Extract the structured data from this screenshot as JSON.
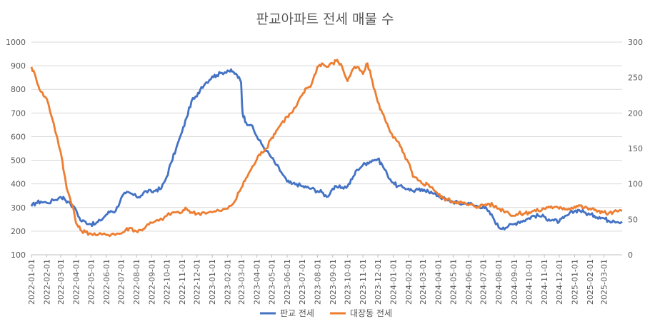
{
  "chart_data": {
    "type": "line",
    "title": "판교아파트 전세 매물 수",
    "x_tick_labels": [
      "2022-01-01",
      "2022-02-01",
      "2022-03-01",
      "2022-04-01",
      "2022-05-01",
      "2022-06-01",
      "2022-07-01",
      "2022-08-01",
      "2022-09-01",
      "2022-10-01",
      "2022-11-01",
      "2022-12-01",
      "2023-01-01",
      "2023-02-01",
      "2023-03-01",
      "2023-04-01",
      "2023-05-01",
      "2023-06-01",
      "2023-07-01",
      "2023-08-01",
      "2023-09-01",
      "2023-10-01",
      "2023-11-01",
      "2023-12-01",
      "2024-01-01",
      "2024-02-01",
      "2024-03-01",
      "2024-04-01",
      "2024-05-01",
      "2024-06-01",
      "2024-07-01",
      "2024-08-01",
      "2024-09-01",
      "2024-10-01",
      "2024-11-01",
      "2024-12-01",
      "2025-01-01",
      "2025-02-01",
      "2025-03-01"
    ],
    "x_range": [
      "2022-01-01",
      "2025-04-07"
    ],
    "y_left": {
      "min": 100,
      "max": 1000,
      "step": 100,
      "ticks": [
        "100",
        "200",
        "300",
        "400",
        "500",
        "600",
        "700",
        "800",
        "900",
        "1000"
      ]
    },
    "y_right": {
      "min": 0,
      "max": 300,
      "step": 50,
      "ticks": [
        "0",
        "50",
        "100",
        "150",
        "200",
        "250",
        "300"
      ]
    },
    "grid": true,
    "legend_position": "bottom",
    "series": [
      {
        "name": "판교 전세",
        "axis": "left",
        "color": "#4472C4",
        "points": [
          [
            "2022-01-01",
            305
          ],
          [
            "2022-01-10",
            320
          ],
          [
            "2022-01-20",
            325
          ],
          [
            "2022-02-01",
            320
          ],
          [
            "2022-02-15",
            330
          ],
          [
            "2022-03-01",
            345
          ],
          [
            "2022-03-08",
            340
          ],
          [
            "2022-03-15",
            325
          ],
          [
            "2022-04-01",
            290
          ],
          [
            "2022-04-10",
            245
          ],
          [
            "2022-04-20",
            240
          ],
          [
            "2022-05-01",
            230
          ],
          [
            "2022-05-10",
            230
          ],
          [
            "2022-05-20",
            245
          ],
          [
            "2022-06-01",
            270
          ],
          [
            "2022-06-10",
            285
          ],
          [
            "2022-06-20",
            285
          ],
          [
            "2022-07-01",
            340
          ],
          [
            "2022-07-10",
            360
          ],
          [
            "2022-07-20",
            360
          ],
          [
            "2022-08-01",
            345
          ],
          [
            "2022-08-10",
            350
          ],
          [
            "2022-08-20",
            370
          ],
          [
            "2022-09-01",
            365
          ],
          [
            "2022-09-10",
            375
          ],
          [
            "2022-09-20",
            380
          ],
          [
            "2022-10-01",
            430
          ],
          [
            "2022-10-10",
            490
          ],
          [
            "2022-10-20",
            550
          ],
          [
            "2022-11-01",
            620
          ],
          [
            "2022-11-10",
            680
          ],
          [
            "2022-11-20",
            750
          ],
          [
            "2022-12-01",
            770
          ],
          [
            "2022-12-10",
            810
          ],
          [
            "2022-12-20",
            830
          ],
          [
            "2023-01-01",
            855
          ],
          [
            "2023-01-10",
            860
          ],
          [
            "2023-01-20",
            870
          ],
          [
            "2023-02-01",
            880
          ],
          [
            "2023-02-10",
            875
          ],
          [
            "2023-02-20",
            860
          ],
          [
            "2023-02-28",
            830
          ],
          [
            "2023-03-03",
            700
          ],
          [
            "2023-03-10",
            660
          ],
          [
            "2023-03-20",
            650
          ],
          [
            "2023-04-01",
            600
          ],
          [
            "2023-04-10",
            570
          ],
          [
            "2023-04-20",
            540
          ],
          [
            "2023-05-01",
            510
          ],
          [
            "2023-05-10",
            480
          ],
          [
            "2023-05-20",
            450
          ],
          [
            "2023-06-01",
            410
          ],
          [
            "2023-06-10",
            400
          ],
          [
            "2023-06-20",
            400
          ],
          [
            "2023-07-01",
            390
          ],
          [
            "2023-07-10",
            385
          ],
          [
            "2023-07-20",
            380
          ],
          [
            "2023-08-01",
            370
          ],
          [
            "2023-08-10",
            365
          ],
          [
            "2023-08-20",
            345
          ],
          [
            "2023-09-01",
            380
          ],
          [
            "2023-09-10",
            385
          ],
          [
            "2023-09-20",
            385
          ],
          [
            "2023-10-01",
            390
          ],
          [
            "2023-10-10",
            420
          ],
          [
            "2023-10-20",
            460
          ],
          [
            "2023-11-01",
            480
          ],
          [
            "2023-11-10",
            490
          ],
          [
            "2023-11-20",
            500
          ],
          [
            "2023-12-01",
            505
          ],
          [
            "2023-12-10",
            480
          ],
          [
            "2023-12-20",
            440
          ],
          [
            "2024-01-01",
            405
          ],
          [
            "2024-01-10",
            390
          ],
          [
            "2024-01-20",
            385
          ],
          [
            "2024-02-01",
            380
          ],
          [
            "2024-02-10",
            370
          ],
          [
            "2024-02-20",
            375
          ],
          [
            "2024-03-01",
            370
          ],
          [
            "2024-03-10",
            375
          ],
          [
            "2024-03-20",
            360
          ],
          [
            "2024-04-01",
            350
          ],
          [
            "2024-04-10",
            340
          ],
          [
            "2024-04-20",
            330
          ],
          [
            "2024-05-01",
            325
          ],
          [
            "2024-05-10",
            320
          ],
          [
            "2024-05-20",
            315
          ],
          [
            "2024-06-01",
            320
          ],
          [
            "2024-06-10",
            310
          ],
          [
            "2024-06-20",
            305
          ],
          [
            "2024-07-01",
            305
          ],
          [
            "2024-07-10",
            285
          ],
          [
            "2024-07-20",
            260
          ],
          [
            "2024-08-01",
            215
          ],
          [
            "2024-08-10",
            215
          ],
          [
            "2024-08-20",
            220
          ],
          [
            "2024-09-01",
            230
          ],
          [
            "2024-09-10",
            240
          ],
          [
            "2024-09-20",
            245
          ],
          [
            "2024-10-01",
            255
          ],
          [
            "2024-10-10",
            265
          ],
          [
            "2024-10-20",
            265
          ],
          [
            "2024-11-01",
            260
          ],
          [
            "2024-11-10",
            250
          ],
          [
            "2024-11-20",
            245
          ],
          [
            "2024-12-01",
            240
          ],
          [
            "2024-12-10",
            255
          ],
          [
            "2024-12-20",
            270
          ],
          [
            "2025-01-01",
            285
          ],
          [
            "2025-01-10",
            290
          ],
          [
            "2025-01-20",
            280
          ],
          [
            "2025-02-01",
            270
          ],
          [
            "2025-02-10",
            265
          ],
          [
            "2025-02-20",
            260
          ],
          [
            "2025-03-01",
            255
          ],
          [
            "2025-03-10",
            245
          ],
          [
            "2025-03-20",
            245
          ],
          [
            "2025-04-07",
            240
          ]
        ]
      },
      {
        "name": "대장동 전세",
        "axis": "right",
        "color": "#ED7D31",
        "points": [
          [
            "2022-01-01",
            265
          ],
          [
            "2022-01-10",
            250
          ],
          [
            "2022-01-20",
            230
          ],
          [
            "2022-02-01",
            220
          ],
          [
            "2022-02-15",
            185
          ],
          [
            "2022-03-01",
            145
          ],
          [
            "2022-03-08",
            115
          ],
          [
            "2022-03-15",
            90
          ],
          [
            "2022-03-25",
            70
          ],
          [
            "2022-04-01",
            45
          ],
          [
            "2022-04-10",
            35
          ],
          [
            "2022-04-20",
            32
          ],
          [
            "2022-05-01",
            30
          ],
          [
            "2022-05-15",
            28
          ],
          [
            "2022-06-01",
            28
          ],
          [
            "2022-06-15",
            30
          ],
          [
            "2022-07-01",
            30
          ],
          [
            "2022-07-10",
            35
          ],
          [
            "2022-07-20",
            38
          ],
          [
            "2022-08-01",
            33
          ],
          [
            "2022-08-10",
            35
          ],
          [
            "2022-08-20",
            40
          ],
          [
            "2022-09-01",
            45
          ],
          [
            "2022-09-15",
            48
          ],
          [
            "2022-10-01",
            55
          ],
          [
            "2022-10-15",
            60
          ],
          [
            "2022-11-01",
            60
          ],
          [
            "2022-11-10",
            65
          ],
          [
            "2022-11-20",
            60
          ],
          [
            "2022-12-01",
            58
          ],
          [
            "2022-12-15",
            60
          ],
          [
            "2023-01-01",
            60
          ],
          [
            "2023-01-15",
            62
          ],
          [
            "2023-02-01",
            65
          ],
          [
            "2023-02-15",
            75
          ],
          [
            "2023-03-01",
            95
          ],
          [
            "2023-03-10",
            108
          ],
          [
            "2023-03-20",
            120
          ],
          [
            "2023-04-01",
            135
          ],
          [
            "2023-04-10",
            145
          ],
          [
            "2023-04-20",
            150
          ],
          [
            "2023-05-01",
            165
          ],
          [
            "2023-05-10",
            175
          ],
          [
            "2023-05-20",
            185
          ],
          [
            "2023-06-01",
            195
          ],
          [
            "2023-06-10",
            200
          ],
          [
            "2023-06-20",
            210
          ],
          [
            "2023-07-01",
            225
          ],
          [
            "2023-07-10",
            235
          ],
          [
            "2023-07-20",
            240
          ],
          [
            "2023-08-01",
            265
          ],
          [
            "2023-08-10",
            270
          ],
          [
            "2023-08-20",
            265
          ],
          [
            "2023-09-01",
            270
          ],
          [
            "2023-09-10",
            275
          ],
          [
            "2023-09-20",
            265
          ],
          [
            "2023-10-01",
            245
          ],
          [
            "2023-10-10",
            260
          ],
          [
            "2023-10-20",
            265
          ],
          [
            "2023-11-01",
            255
          ],
          [
            "2023-11-10",
            270
          ],
          [
            "2023-11-20",
            245
          ],
          [
            "2023-12-01",
            215
          ],
          [
            "2023-12-10",
            200
          ],
          [
            "2023-12-20",
            185
          ],
          [
            "2024-01-01",
            165
          ],
          [
            "2024-01-10",
            160
          ],
          [
            "2024-01-20",
            145
          ],
          [
            "2024-02-01",
            130
          ],
          [
            "2024-02-10",
            110
          ],
          [
            "2024-02-20",
            105
          ],
          [
            "2024-03-01",
            100
          ],
          [
            "2024-03-10",
            100
          ],
          [
            "2024-03-20",
            95
          ],
          [
            "2024-04-01",
            85
          ],
          [
            "2024-04-10",
            80
          ],
          [
            "2024-04-20",
            78
          ],
          [
            "2024-05-01",
            75
          ],
          [
            "2024-05-10",
            75
          ],
          [
            "2024-05-20",
            73
          ],
          [
            "2024-06-01",
            70
          ],
          [
            "2024-06-10",
            70
          ],
          [
            "2024-06-20",
            68
          ],
          [
            "2024-07-01",
            70
          ],
          [
            "2024-07-10",
            72
          ],
          [
            "2024-07-20",
            70
          ],
          [
            "2024-08-01",
            65
          ],
          [
            "2024-08-10",
            63
          ],
          [
            "2024-08-20",
            60
          ],
          [
            "2024-09-01",
            55
          ],
          [
            "2024-09-10",
            58
          ],
          [
            "2024-09-20",
            58
          ],
          [
            "2024-10-01",
            60
          ],
          [
            "2024-10-10",
            62
          ],
          [
            "2024-10-20",
            62
          ],
          [
            "2024-11-01",
            65
          ],
          [
            "2024-11-10",
            68
          ],
          [
            "2024-11-20",
            67
          ],
          [
            "2024-12-01",
            65
          ],
          [
            "2024-12-10",
            66
          ],
          [
            "2024-12-20",
            65
          ],
          [
            "2025-01-01",
            68
          ],
          [
            "2025-01-10",
            70
          ],
          [
            "2025-01-20",
            66
          ],
          [
            "2025-02-01",
            65
          ],
          [
            "2025-02-10",
            63
          ],
          [
            "2025-02-20",
            62
          ],
          [
            "2025-03-01",
            60
          ],
          [
            "2025-03-10",
            58
          ],
          [
            "2025-03-20",
            60
          ],
          [
            "2025-04-07",
            62
          ]
        ]
      }
    ]
  }
}
